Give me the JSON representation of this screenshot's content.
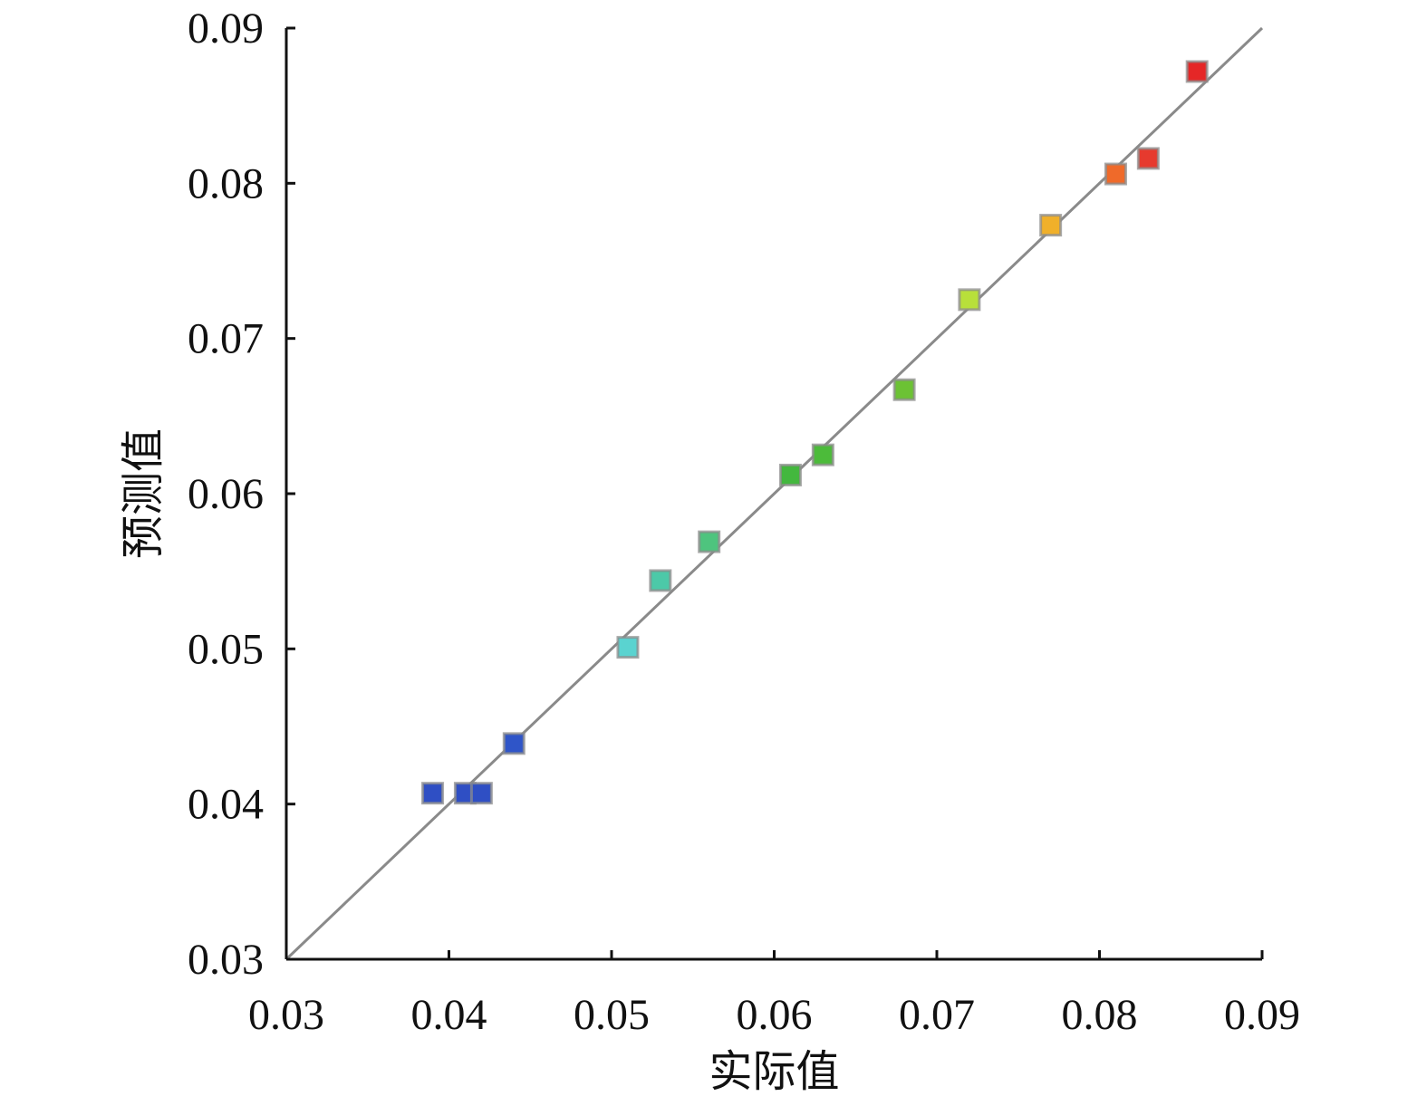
{
  "chart_data": {
    "type": "scatter",
    "xlabel": "实际值",
    "ylabel": "预测值",
    "xlim": [
      0.03,
      0.09
    ],
    "ylim": [
      0.03,
      0.09
    ],
    "xticks": [
      "0.03",
      "0.04",
      "0.05",
      "0.06",
      "0.07",
      "0.08",
      "0.09"
    ],
    "yticks": [
      "0.03",
      "0.04",
      "0.05",
      "0.06",
      "0.07",
      "0.08",
      "0.09"
    ],
    "grid": false,
    "reference_line": {
      "from": [
        0.03,
        0.03
      ],
      "to": [
        0.09,
        0.09
      ],
      "color": "#8a8a8a"
    },
    "points": [
      {
        "x": 0.039,
        "y": 0.0407,
        "color": "#2f4fc4"
      },
      {
        "x": 0.041,
        "y": 0.0407,
        "color": "#2f4fc4"
      },
      {
        "x": 0.042,
        "y": 0.0407,
        "color": "#2f4fc4"
      },
      {
        "x": 0.044,
        "y": 0.0439,
        "color": "#2f55c8"
      },
      {
        "x": 0.051,
        "y": 0.0501,
        "color": "#5ad3d0"
      },
      {
        "x": 0.053,
        "y": 0.0544,
        "color": "#4cc9a8"
      },
      {
        "x": 0.056,
        "y": 0.0569,
        "color": "#4ec47e"
      },
      {
        "x": 0.061,
        "y": 0.0612,
        "color": "#43b83e"
      },
      {
        "x": 0.063,
        "y": 0.0625,
        "color": "#4cbb3a"
      },
      {
        "x": 0.068,
        "y": 0.0667,
        "color": "#6cc234"
      },
      {
        "x": 0.072,
        "y": 0.0725,
        "color": "#b8e03a"
      },
      {
        "x": 0.077,
        "y": 0.0773,
        "color": "#f0b02a"
      },
      {
        "x": 0.081,
        "y": 0.0806,
        "color": "#ef6a2a"
      },
      {
        "x": 0.083,
        "y": 0.0816,
        "color": "#e63a2e"
      },
      {
        "x": 0.086,
        "y": 0.0872,
        "color": "#e52727"
      }
    ]
  }
}
